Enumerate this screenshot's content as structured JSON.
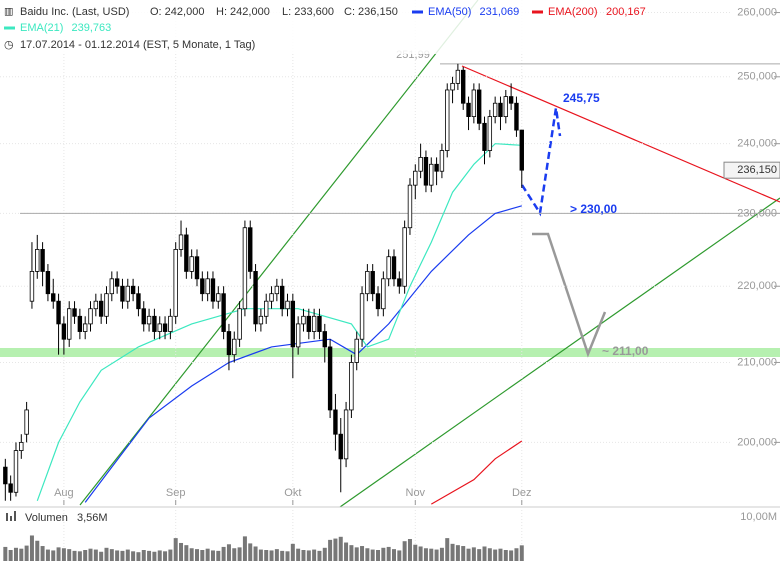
{
  "header": {
    "title": "Baidu Inc. (Last, USD)",
    "ohlc": [
      "O: 242,000",
      "H: 242,000",
      "L: 233,600",
      "C: 236,150"
    ],
    "period": "17.07.2014 - 01.12.2014 (EST, 5 Monate, 1 Tag)"
  },
  "chart_data": {
    "type": "candlestick",
    "log_scale": true,
    "grid": true,
    "ylim": [
      192.5,
      262
    ],
    "xlim": [
      -1,
      145.5
    ],
    "yticks": [
      {
        "value": 200,
        "label": "200,000"
      },
      {
        "value": 210,
        "label": "210,000"
      },
      {
        "value": 220,
        "label": "220,000"
      },
      {
        "value": 230,
        "label": "230,000"
      },
      {
        "value": 240,
        "label": "240,000"
      },
      {
        "value": 250,
        "label": "250,000"
      },
      {
        "value": 260,
        "label": "260,000"
      }
    ],
    "xticks": [
      {
        "value": 11,
        "label": "Aug"
      },
      {
        "value": 32,
        "label": "Sep"
      },
      {
        "value": 54,
        "label": "Okt"
      },
      {
        "value": 77,
        "label": "Nov"
      },
      {
        "value": 97,
        "label": "Dez"
      }
    ],
    "candles": [
      [
        197,
        198,
        193,
        195
      ],
      [
        195,
        196,
        193,
        194
      ],
      [
        194,
        200,
        193.5,
        199
      ],
      [
        199,
        201,
        198,
        200
      ],
      [
        201,
        205,
        200,
        204
      ],
      [
        218,
        226,
        217,
        222
      ],
      [
        222,
        227,
        221,
        225
      ],
      [
        225,
        226,
        220,
        222
      ],
      [
        222,
        223,
        218,
        219
      ],
      [
        219,
        221,
        217,
        218
      ],
      [
        218,
        219,
        211,
        215
      ],
      [
        215,
        216,
        211,
        213
      ],
      [
        213,
        218,
        212,
        217
      ],
      [
        217,
        218,
        215,
        216
      ],
      [
        216,
        217,
        213,
        214
      ],
      [
        214,
        216,
        213,
        215
      ],
      [
        215,
        218,
        214,
        217
      ],
      [
        217,
        219,
        216,
        218
      ],
      [
        218,
        219,
        215,
        216
      ],
      [
        216,
        220,
        215,
        219
      ],
      [
        219,
        222,
        218,
        221
      ],
      [
        221,
        222,
        219,
        220
      ],
      [
        220,
        221,
        217,
        218
      ],
      [
        218,
        221,
        217,
        220
      ],
      [
        220,
        221,
        218,
        219
      ],
      [
        219,
        220,
        216,
        217
      ],
      [
        217,
        218,
        214,
        215
      ],
      [
        215,
        217,
        214,
        216
      ],
      [
        216,
        217,
        213,
        214
      ],
      [
        214,
        216,
        213,
        215
      ],
      [
        215,
        216,
        213,
        214
      ],
      [
        214,
        217,
        213,
        216
      ],
      [
        216,
        226,
        215,
        225
      ],
      [
        225,
        229,
        224,
        227
      ],
      [
        227,
        228,
        221,
        222
      ],
      [
        222,
        225,
        221,
        224
      ],
      [
        224,
        225,
        220,
        221
      ],
      [
        221,
        222,
        218,
        219
      ],
      [
        219,
        222,
        218,
        221
      ],
      [
        221,
        222,
        217,
        218
      ],
      [
        218,
        220,
        217,
        219
      ],
      [
        219,
        220,
        213,
        214
      ],
      [
        214,
        215,
        209,
        211
      ],
      [
        211,
        214,
        210,
        213
      ],
      [
        213,
        218,
        212,
        217
      ],
      [
        217,
        229,
        216,
        228
      ],
      [
        228,
        229,
        221,
        222
      ],
      [
        222,
        223,
        214,
        215
      ],
      [
        215,
        217,
        214,
        216
      ],
      [
        216,
        219,
        215,
        218
      ],
      [
        218,
        220,
        217,
        219
      ],
      [
        219,
        221,
        218,
        220
      ],
      [
        220,
        221,
        216,
        217
      ],
      [
        217,
        219,
        216,
        218
      ],
      [
        218,
        219,
        208,
        212
      ],
      [
        212,
        216,
        211,
        215
      ],
      [
        215,
        217,
        214,
        216
      ],
      [
        216,
        217,
        213,
        214
      ],
      [
        214,
        217,
        213,
        216
      ],
      [
        216,
        217,
        213,
        214
      ],
      [
        214,
        215,
        210,
        212
      ],
      [
        212,
        213,
        203,
        204
      ],
      [
        204,
        206,
        199,
        201
      ],
      [
        201,
        203,
        194,
        198
      ],
      [
        198,
        205,
        197,
        204
      ],
      [
        204,
        211,
        203,
        210
      ],
      [
        210,
        214,
        209,
        213
      ],
      [
        213,
        220,
        212,
        219
      ],
      [
        219,
        223,
        218,
        222
      ],
      [
        222,
        223,
        218,
        219
      ],
      [
        219,
        220,
        216,
        217
      ],
      [
        217,
        222,
        216,
        221
      ],
      [
        221,
        225,
        220,
        224
      ],
      [
        224,
        225,
        220,
        221
      ],
      [
        221,
        222,
        219,
        220
      ],
      [
        220,
        229,
        219,
        228
      ],
      [
        228,
        235,
        227,
        234
      ],
      [
        234,
        237,
        232,
        236
      ],
      [
        236,
        240,
        235,
        238
      ],
      [
        238,
        239,
        233,
        234
      ],
      [
        234,
        238,
        233,
        237
      ],
      [
        237,
        238,
        234,
        236
      ],
      [
        236,
        240,
        235,
        239
      ],
      [
        239,
        249,
        238,
        248
      ],
      [
        248,
        250,
        246,
        249
      ],
      [
        249,
        251.99,
        248,
        251
      ],
      [
        251,
        251.5,
        245,
        246
      ],
      [
        246,
        247,
        242,
        244
      ],
      [
        244,
        249,
        243,
        248
      ],
      [
        248,
        249,
        242,
        243
      ],
      [
        243,
        244,
        237,
        239
      ],
      [
        239,
        245,
        238,
        244
      ],
      [
        244,
        247,
        243,
        246
      ],
      [
        246,
        247,
        242,
        244
      ],
      [
        244,
        248,
        243,
        247
      ],
      [
        247,
        249,
        245,
        246
      ],
      [
        246,
        247,
        241,
        242
      ],
      [
        242,
        242,
        233.6,
        236.15
      ]
    ],
    "last_price_label": "236,150",
    "series": [
      {
        "name": "EMA(50)",
        "color": "#1a3cf0",
        "value_label": "231,069",
        "x": [
          15,
          20,
          27,
          35,
          42,
          50,
          61,
          66,
          72,
          80,
          87,
          92,
          97
        ],
        "values": [
          192.8,
          197,
          203,
          207,
          210,
          212,
          213,
          211,
          215,
          222,
          227,
          230,
          231.069
        ]
      },
      {
        "name": "EMA(200)",
        "color": "#e8141e",
        "value_label": "200,167",
        "x": [
          80,
          88,
          92,
          97
        ],
        "values": [
          192.6,
          195.5,
          198,
          200.167
        ]
      },
      {
        "name": "EMA(21)",
        "color": "#3ce8c0",
        "value_label": "239,763",
        "x": [
          6,
          10,
          14,
          18,
          25,
          35,
          45,
          55,
          65,
          68,
          72,
          76,
          80,
          84,
          88,
          92,
          97
        ],
        "values": [
          193,
          200,
          205,
          209,
          212,
          215,
          217,
          217,
          215,
          212,
          213,
          220,
          226,
          233,
          237,
          240,
          239.763
        ]
      }
    ],
    "levels": [
      251.99,
      230
    ],
    "annotations": [
      "251,99",
      "245,75",
      "> 230,00",
      "~ 211,00"
    ],
    "volume": {
      "label": "Volumen",
      "value_label": "3,56M",
      "ylim": [
        0,
        10
      ],
      "yticks": [
        {
          "value": 10,
          "label": "10,00M"
        }
      ],
      "values": [
        3.2,
        2.5,
        3.0,
        2.8,
        3.5,
        5.8,
        4.6,
        3.4,
        2.6,
        2.4,
        3.1,
        2.9,
        2.7,
        2.3,
        2.2,
        2.5,
        2.8,
        2.6,
        2.1,
        3.0,
        2.7,
        2.4,
        2.3,
        2.6,
        2.2,
        2.0,
        2.5,
        2.3,
        2.1,
        2.4,
        2.2,
        2.6,
        5.2,
        4.1,
        3.6,
        2.9,
        2.7,
        2.5,
        2.8,
        2.4,
        2.3,
        3.2,
        3.8,
        2.9,
        3.1,
        5.6,
        4.0,
        3.3,
        2.6,
        2.5,
        2.4,
        2.7,
        2.3,
        2.2,
        3.9,
        2.8,
        2.5,
        2.4,
        2.6,
        2.3,
        3.0,
        4.8,
        5.1,
        5.5,
        4.2,
        3.6,
        3.1,
        3.4,
        2.9,
        2.6,
        2.5,
        3.0,
        3.2,
        2.7,
        2.4,
        4.5,
        5.0,
        3.7,
        3.3,
        2.9,
        2.8,
        2.6,
        3.0,
        5.2,
        3.9,
        3.6,
        3.4,
        2.8,
        3.1,
        2.7,
        3.3,
        2.9,
        2.6,
        2.8,
        2.5,
        2.4,
        2.9,
        3.56
      ]
    }
  }
}
